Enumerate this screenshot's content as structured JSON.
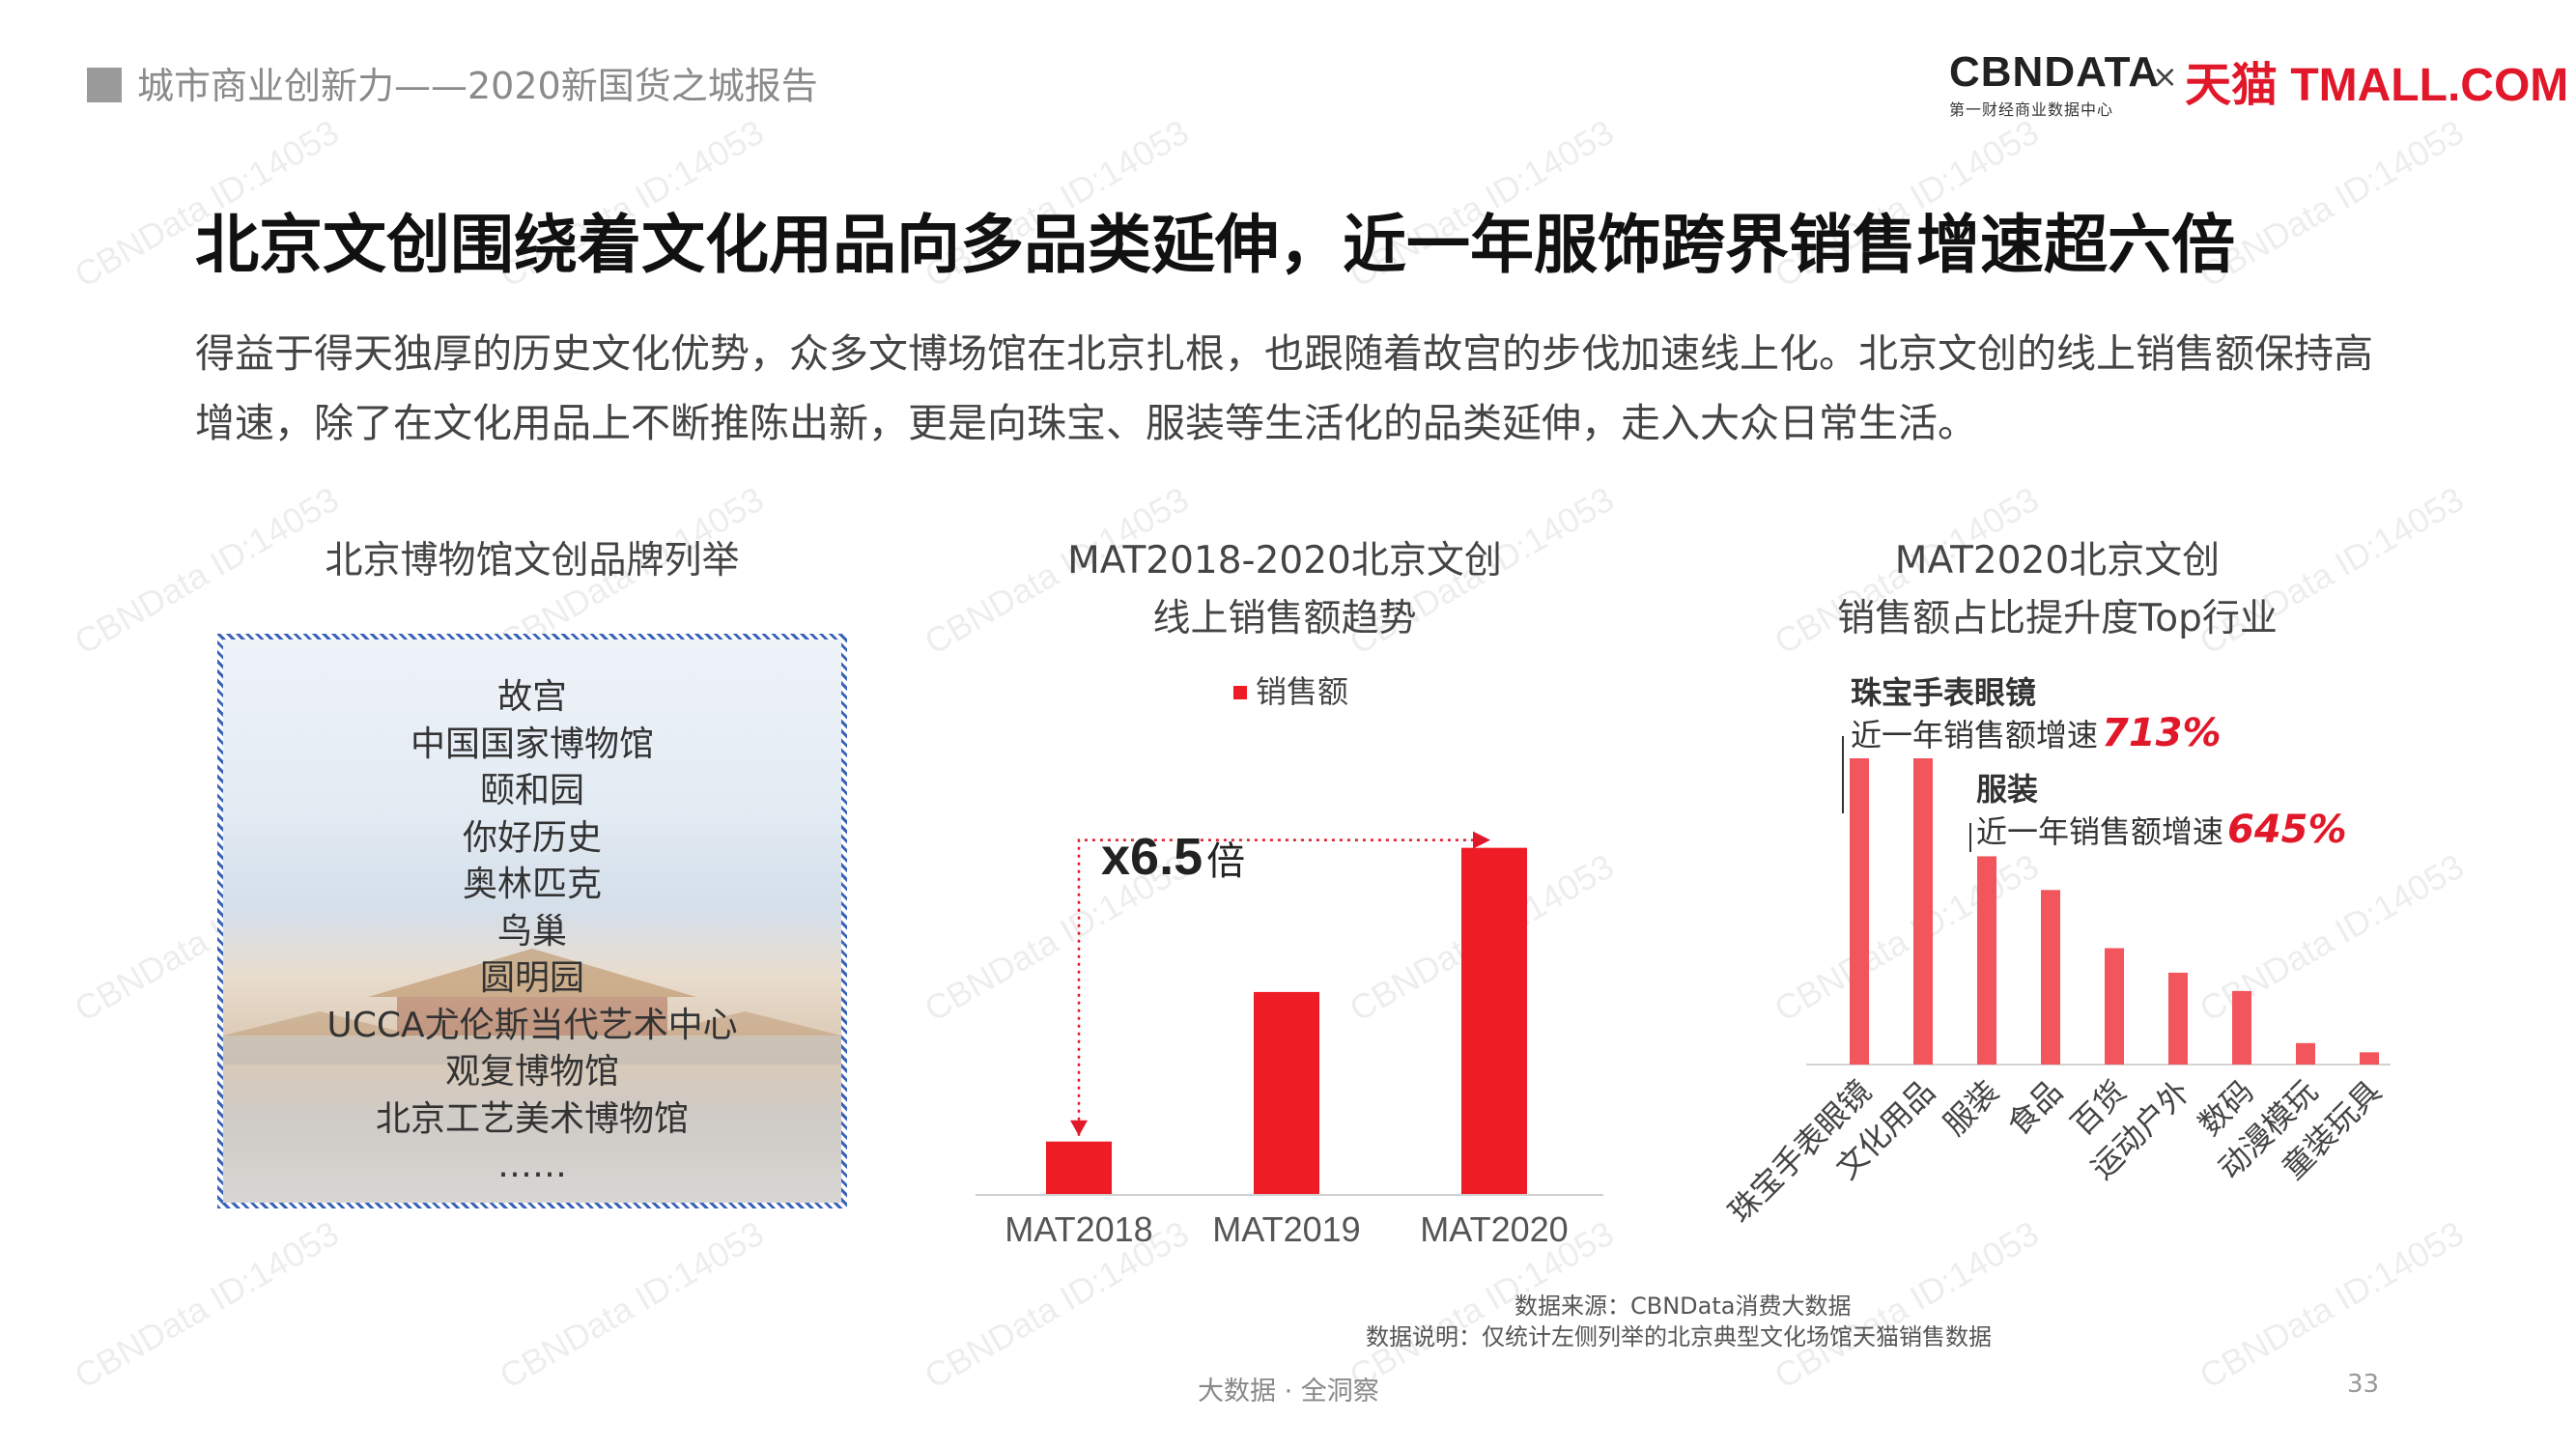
{
  "header": {
    "report_title": "城市商业创新力——2020新国货之城报告",
    "logo_cbndata": "CBNDATA",
    "logo_cbndata_sub": "第一财经商业数据中心",
    "logo_x": "×",
    "logo_tmall": "天猫 TMALL.COM"
  },
  "headline": "北京文创围绕着文化用品向多品类延伸，近一年服饰跨界销售增速超六倍",
  "intro": "得益于得天独厚的历史文化优势，众多文博场馆在北京扎根，也跟随着故宫的步伐加速线上化。北京文创的线上销售额保持高增速，除了在文化用品上不断推陈出新，更是向珠宝、服装等生活化的品类延伸，走入大众日常生活。",
  "left_panel": {
    "title": "北京博物馆文创品牌列举",
    "brands": [
      "故宫",
      "中国国家博物馆",
      "颐和园",
      "你好历史",
      "奥林匹克",
      "鸟巢",
      "圆明园",
      "UCCA尤伦斯当代艺术中心",
      "观复博物馆",
      "北京工艺美术博物馆",
      "……"
    ]
  },
  "middle_panel": {
    "title_line1": "MAT2018-2020北京文创",
    "title_line2": "线上销售额趋势",
    "multiplier_main": "x6.5",
    "multiplier_unit": "倍"
  },
  "right_panel": {
    "title_line1": "MAT2020北京文创",
    "title_line2": "销售额占比提升度Top行业",
    "ann1_title": "珠宝手表眼镜",
    "ann1_text": "近一年销售额增速",
    "ann1_value": "713%",
    "ann2_title": "服装",
    "ann2_text": "近一年销售额增速",
    "ann2_value": "645%"
  },
  "chart_data": [
    {
      "type": "bar",
      "title": "MAT2018-2020北京文创线上销售额趋势",
      "categories": [
        "MAT2018",
        "MAT2019",
        "MAT2020"
      ],
      "series": [
        {
          "name": "销售额",
          "values": [
            1.0,
            3.8,
            6.5
          ]
        }
      ],
      "ylim": [
        0,
        7
      ],
      "legend": "top",
      "grid": false,
      "color": "#ee1c25",
      "annotation": "x6.5倍"
    },
    {
      "type": "bar",
      "title": "MAT2020北京文创销售额占比提升度Top行业",
      "categories": [
        "珠宝手表眼镜",
        "文化用品",
        "服装",
        "食品",
        "百货",
        "运动户外",
        "数码",
        "动漫模玩",
        "童装玩具"
      ],
      "values": [
        100,
        100,
        68,
        57,
        38,
        30,
        24,
        7,
        4
      ],
      "ylim": [
        0,
        100
      ],
      "grid": false,
      "color": "#f2565c"
    }
  ],
  "footer": {
    "source": "数据来源：CBNData消费大数据",
    "note": "数据说明：仅统计左侧列举的北京典型文化场馆天猫销售数据",
    "tagline": "大数据 · 全洞察",
    "page_number": "33"
  },
  "watermark": "CBNData ID:14053",
  "colors": {
    "accent": "#ee1c25",
    "accent_light": "#f2565c",
    "annotation": "#e1182a"
  }
}
